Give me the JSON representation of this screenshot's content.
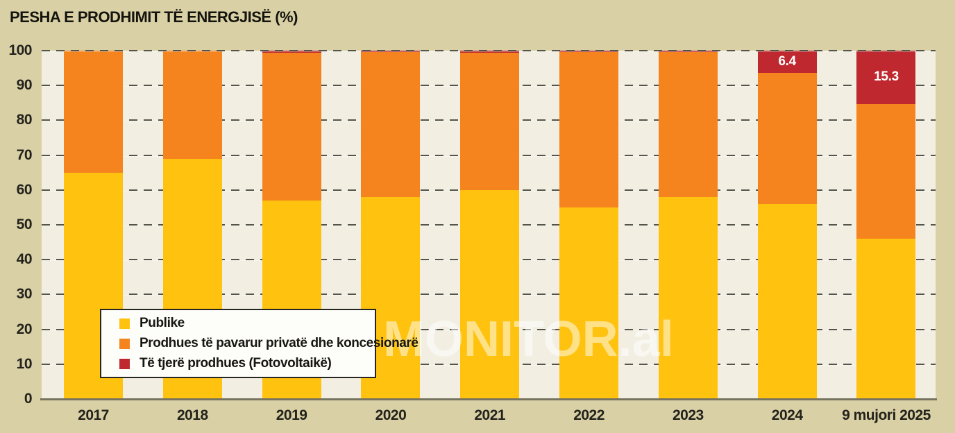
{
  "title": "PESHA E PRODHIMIT TË ENERGJISË (%)",
  "watermark": "MONITOR.al",
  "colors": {
    "background": "#d9d1a5",
    "plot_background": "#f2efe2",
    "publike": "#fec20f",
    "private": "#f5841f",
    "other": "#bf282e",
    "gridline": "#55544a",
    "axis": "#76745f",
    "text": "#23221c",
    "label_on_red": "#ffffff"
  },
  "y_axis": {
    "ticks": [
      0,
      10,
      20,
      30,
      40,
      50,
      60,
      70,
      80,
      90,
      100
    ],
    "min": 0,
    "max": 100
  },
  "legend": {
    "items": [
      {
        "label": "Publike",
        "key": "publike"
      },
      {
        "label": "Prodhues të pavarur privatë dhe koncesionarë",
        "key": "private"
      },
      {
        "label": "Të tjerë prodhues (Fotovoltaikë)",
        "key": "other"
      }
    ]
  },
  "chart_data": {
    "type": "bar",
    "stacked": true,
    "title": "PESHA E PRODHIMIT TË ENERGJISË (%)",
    "categories": [
      "2017",
      "2018",
      "2019",
      "2020",
      "2021",
      "2022",
      "2023",
      "2024",
      "9 mujori 2025"
    ],
    "series": [
      {
        "name": "Publike",
        "color_key": "publike",
        "values": [
          65,
          69,
          57,
          58,
          60,
          55,
          58,
          56,
          46
        ]
      },
      {
        "name": "Prodhues të pavarur privatë dhe koncesionarë",
        "color_key": "private",
        "values": [
          35,
          31,
          42.5,
          41.7,
          39.5,
          44.6,
          41.6,
          37.6,
          38.7
        ]
      },
      {
        "name": "Të tjerë prodhues (Fotovoltaikë)",
        "color_key": "other",
        "values": [
          0,
          0,
          0.5,
          0.3,
          0.5,
          0.4,
          0.4,
          6.4,
          15.3
        ]
      }
    ],
    "data_labels": [
      {
        "category": "2024",
        "series": "Të tjerë prodhues (Fotovoltaikë)",
        "text": "6.4"
      },
      {
        "category": "9 mujori 2025",
        "series": "Të tjerë prodhues (Fotovoltaikë)",
        "text": "15.3"
      }
    ],
    "xlabel": "",
    "ylabel": "",
    "ylim": [
      0,
      100
    ],
    "grid": "dashed horizontal",
    "legend_position": "inside lower-left"
  }
}
